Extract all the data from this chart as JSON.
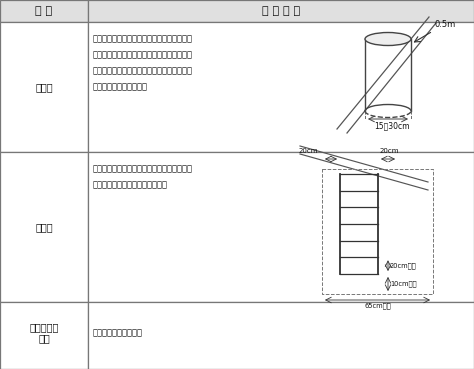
{
  "col1_header": "種 類",
  "col2_header": "下 降 空 間",
  "row1_label": "緩降機",
  "row2_label": "避難梯",
  "row3_label": "避難繩索及\n滑桟",
  "row1_lines": [
    "以器具中心半徑零點五公尺圓柱形範圍內，但",
    "突出物在十公分以內，且無避難障礙者，或超",
    "過十公分時，能採取不損繩索措施者，該突出",
    "物得在下降空間範圍內。"
  ],
  "row2_lines": [
    "自避難梯二側籲樿中心線向外二十公分以上及",
    "其前方六十五公分以上之範圍內。"
  ],
  "row3_text": "應無避難障礙之空間。",
  "border_color": "#777777",
  "text_color": "#111111",
  "header_bg": "#e0e0e0",
  "cell_bg": "#ffffff"
}
